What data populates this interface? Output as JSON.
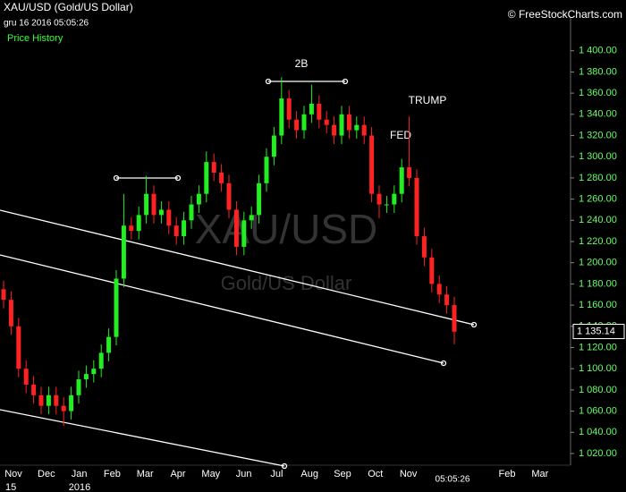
{
  "chart_data": {
    "type": "candlestick",
    "title": "XAU/USD (Gold/US Dollar)",
    "subtitle": "gru 16 2016 05:05:26",
    "copyright": "© FreeStockCharts.com",
    "panel_label": "Price History",
    "watermark": "XAU/USD",
    "watermark_subtitle": "Gold/US Dollar",
    "annotations": [
      "2B",
      "FED",
      "TRUMP"
    ],
    "time_label": "05:05:26",
    "categories": [
      "Nov",
      "Dec",
      "Jan",
      "Feb",
      "Mar",
      "Apr",
      "May",
      "Jun",
      "Jul",
      "Aug",
      "Sep",
      "Oct",
      "Nov",
      null,
      null,
      "Feb",
      "Mar"
    ],
    "year_labels": [
      "15",
      "2016"
    ],
    "up_color": "#22ee22",
    "down_color": "#ff2222",
    "candles": {
      "open": [
        1175,
        1165,
        1140,
        1100,
        1085,
        1075,
        1065,
        1075,
        1065,
        1060,
        1075,
        1090,
        1095,
        1100,
        1115,
        1130,
        1185,
        1235,
        1230,
        1245,
        1265,
        1245,
        1250,
        1235,
        1225,
        1240,
        1255,
        1265,
        1295,
        1285,
        1275,
        1250,
        1215,
        1240,
        1245,
        1275,
        1300,
        1320,
        1355,
        1335,
        1325,
        1340,
        1350,
        1335,
        1330,
        1320,
        1340,
        1325,
        1330,
        1320,
        1265,
        1255,
        1255,
        1265,
        1290,
        1280,
        1225,
        1205,
        1180,
        1170,
        1160
      ],
      "high": [
        1183,
        1173,
        1148,
        1108,
        1093,
        1083,
        1083,
        1083,
        1073,
        1083,
        1098,
        1103,
        1108,
        1123,
        1138,
        1193,
        1265,
        1243,
        1253,
        1282,
        1273,
        1258,
        1258,
        1243,
        1248,
        1263,
        1273,
        1305,
        1303,
        1293,
        1283,
        1258,
        1248,
        1253,
        1283,
        1308,
        1328,
        1375,
        1363,
        1343,
        1348,
        1368,
        1358,
        1343,
        1338,
        1348,
        1348,
        1338,
        1338,
        1328,
        1273,
        1263,
        1273,
        1298,
        1338,
        1288,
        1233,
        1213,
        1188,
        1178,
        1168
      ],
      "low": [
        1157,
        1132,
        1092,
        1077,
        1067,
        1057,
        1057,
        1057,
        1046,
        1052,
        1067,
        1082,
        1087,
        1092,
        1107,
        1122,
        1177,
        1222,
        1222,
        1237,
        1237,
        1237,
        1227,
        1217,
        1217,
        1232,
        1247,
        1257,
        1277,
        1267,
        1242,
        1207,
        1207,
        1232,
        1237,
        1267,
        1292,
        1312,
        1327,
        1317,
        1317,
        1332,
        1327,
        1322,
        1312,
        1312,
        1317,
        1317,
        1312,
        1257,
        1242,
        1247,
        1247,
        1257,
        1272,
        1217,
        1197,
        1172,
        1162,
        1152,
        1123
      ],
      "close": [
        1165,
        1140,
        1100,
        1085,
        1075,
        1065,
        1075,
        1065,
        1060,
        1075,
        1090,
        1095,
        1100,
        1115,
        1130,
        1185,
        1235,
        1230,
        1245,
        1265,
        1245,
        1250,
        1235,
        1225,
        1240,
        1255,
        1265,
        1295,
        1285,
        1275,
        1250,
        1215,
        1240,
        1245,
        1275,
        1300,
        1320,
        1355,
        1335,
        1325,
        1340,
        1350,
        1335,
        1330,
        1320,
        1340,
        1325,
        1330,
        1320,
        1265,
        1255,
        1255,
        1265,
        1290,
        1280,
        1225,
        1205,
        1180,
        1170,
        1160,
        1135
      ]
    },
    "last_price": {
      "value": 1135.14,
      "label": "1 135.14"
    },
    "ylim": [
      1009,
      1431
    ],
    "yticks": [
      {
        "value": 1020,
        "label": "1 020.00"
      },
      {
        "value": 1040,
        "label": "1 040.00"
      },
      {
        "value": 1060,
        "label": "1 060.00"
      },
      {
        "value": 1080,
        "label": "1 080.00"
      },
      {
        "value": 1100,
        "label": "1 100.00"
      },
      {
        "value": 1120,
        "label": "1 120.00"
      },
      {
        "value": 1140,
        "label": "1 140.00"
      },
      {
        "value": 1160,
        "label": "1 160.00"
      },
      {
        "value": 1180,
        "label": "1 180.00"
      },
      {
        "value": 1200,
        "label": "1 200.00"
      },
      {
        "value": 1220,
        "label": "1 220.00"
      },
      {
        "value": 1240,
        "label": "1 240.00"
      },
      {
        "value": 1260,
        "label": "1 260.00"
      },
      {
        "value": 1280,
        "label": "1 280.00"
      },
      {
        "value": 1300,
        "label": "1 300.00"
      },
      {
        "value": 1320,
        "label": "1 320.00"
      },
      {
        "value": 1340,
        "label": "1 340.00"
      },
      {
        "value": 1360,
        "label": "1 360.00"
      },
      {
        "value": 1380,
        "label": "1 380.00"
      },
      {
        "value": 1400,
        "label": "1 400.00"
      }
    ]
  }
}
